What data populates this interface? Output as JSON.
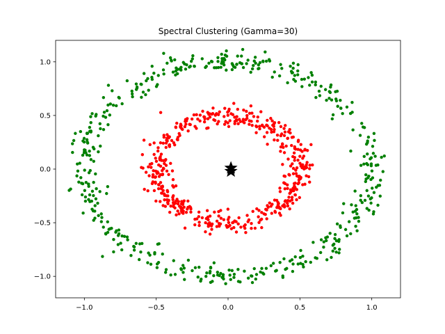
{
  "chart_data": {
    "type": "scatter",
    "title": "Spectral Clustering (Gamma=30)",
    "xlabel": "",
    "ylabel": "",
    "xlim": [
      -1.2,
      1.2
    ],
    "ylim": [
      -1.2,
      1.2
    ],
    "xticks": [
      -1.0,
      -0.5,
      0.0,
      0.5,
      1.0
    ],
    "yticks": [
      -1.0,
      -0.5,
      0.0,
      0.5,
      1.0
    ],
    "xtick_labels": [
      "−1.0",
      "−0.5",
      "0.0",
      "0.5",
      "1.0"
    ],
    "ytick_labels": [
      "−1.0",
      "−0.5",
      "0.0",
      "0.5",
      "1.0"
    ],
    "grid": false,
    "series": [
      {
        "color": "#008000",
        "shape": "ring",
        "center": [
          0.0,
          0.0
        ],
        "radius": 1.0,
        "noise": 0.05,
        "n_points": 500
      },
      {
        "color": "#ff0000",
        "shape": "ring",
        "center": [
          0.0,
          0.0
        ],
        "radius": 0.5,
        "noise": 0.05,
        "n_points": 500
      }
    ],
    "centers": [
      {
        "color": "#000000",
        "marker": "star",
        "x": 0.02,
        "y": 0.01
      },
      {
        "color": "#000000",
        "marker": "star",
        "x": 0.02,
        "y": -0.02
      }
    ]
  }
}
